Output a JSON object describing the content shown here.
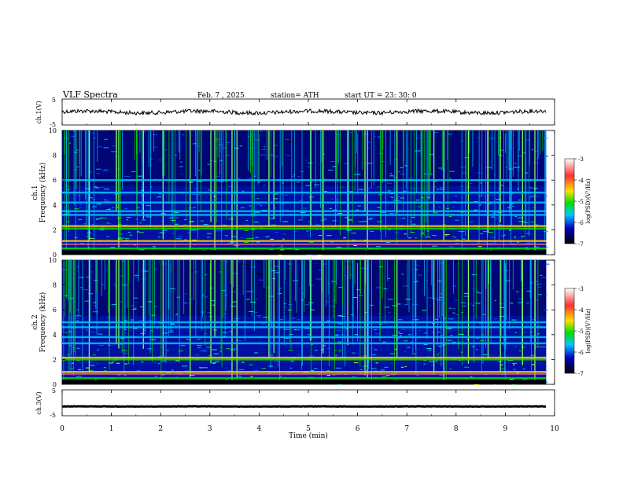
{
  "header": {
    "title": "VLF  Spectra",
    "date": "Feb. 7  , 2025",
    "station": "station= ATH",
    "start": "start  UT  =    23: 30: 0"
  },
  "colorbar": {
    "label": "log(PSD)(V²/Hz)",
    "ticks": [
      "-3",
      "-4",
      "-5",
      "-6",
      "-7"
    ],
    "stops": [
      "#ffffff",
      "#ff0000",
      "#ffd000",
      "#00e000",
      "#00c8ff",
      "#0000b0",
      "#000000"
    ]
  },
  "chart_data": [
    {
      "type": "line",
      "name": "ch1-waveform",
      "ylabel": "ch.1(V)",
      "ylim": [
        -5,
        5
      ],
      "yticks": [
        "5",
        "-5"
      ],
      "baseline": 0,
      "x_range": [
        0,
        9.83
      ]
    },
    {
      "type": "heatmap",
      "name": "ch1-spectrogram",
      "ylabel_1": "ch.1",
      "ylabel_2": "Frequency  (kHz)",
      "ylim": [
        0,
        10
      ],
      "yticks": [
        "10",
        "8",
        "6",
        "4",
        "2",
        "0"
      ],
      "x_range": [
        0,
        9.83
      ],
      "bands_khz": [
        0.5,
        1.1,
        2.1,
        2.3,
        3.2,
        3.5,
        4.2,
        5.0,
        6.0
      ],
      "event_times_min": [
        0.55,
        1.1,
        1.15,
        1.65,
        2.05,
        2.6,
        3.02,
        3.1,
        3.45,
        3.55,
        4.2,
        4.3,
        5.05,
        5.3,
        5.8,
        6.15,
        6.2,
        6.8,
        7.55,
        7.75,
        8.25,
        8.65,
        8.9,
        9.35,
        9.6
      ]
    },
    {
      "type": "heatmap",
      "name": "ch2-spectrogram",
      "ylabel_1": "ch.2",
      "ylabel_2": "Frequency  (kHz)",
      "ylim": [
        0,
        10
      ],
      "yticks": [
        "10",
        "8",
        "6",
        "4",
        "2",
        "0"
      ],
      "x_range": [
        0,
        9.83
      ],
      "bands_khz": [
        0.5,
        1.0,
        2.0,
        2.15,
        3.3,
        3.8,
        4.6,
        5.0
      ],
      "event_times_min": [
        0.55,
        1.1,
        1.15,
        1.65,
        2.05,
        2.6,
        3.02,
        3.1,
        3.45,
        3.55,
        4.2,
        4.3,
        5.05,
        5.3,
        5.8,
        6.15,
        6.2,
        6.8,
        7.55,
        7.75,
        8.25,
        8.65,
        8.9,
        9.35,
        9.6
      ]
    },
    {
      "type": "line",
      "name": "ch3-waveform",
      "ylabel": "ch.3(V)",
      "ylim": [
        -5,
        5
      ],
      "yticks": [
        "5",
        "-5"
      ],
      "baseline": -1.4,
      "x_range": [
        0,
        9.83
      ]
    }
  ],
  "x_axis": {
    "label": "Time  (min)",
    "ticks": [
      "0",
      "1",
      "2",
      "3",
      "4",
      "5",
      "6",
      "7",
      "8",
      "9",
      "10"
    ],
    "range": [
      0,
      10
    ]
  }
}
